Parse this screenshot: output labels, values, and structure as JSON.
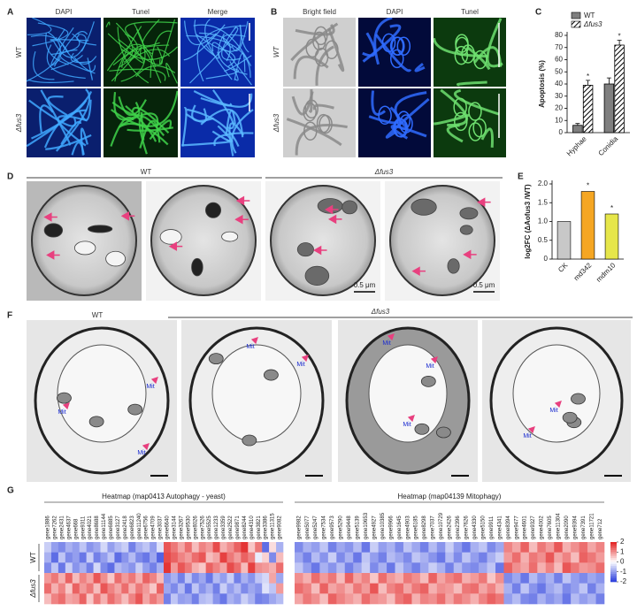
{
  "panel_labels": [
    "A",
    "B",
    "C",
    "D",
    "E",
    "F",
    "G"
  ],
  "panel_a": {
    "columns": [
      "DAPI",
      "Tunel",
      "Merge"
    ],
    "rows": [
      "WT",
      "Δfus3"
    ]
  },
  "panel_b": {
    "columns": [
      "Bright field",
      "DAPI",
      "Tunel"
    ],
    "rows": [
      "WT",
      "Δfus3"
    ]
  },
  "panel_d": {
    "groups": [
      "WT",
      "Δfus3"
    ],
    "scale_bars": [
      "0.5 μm",
      "0.5 μm"
    ]
  },
  "panel_f": {
    "groups": [
      "WT",
      "Δfus3"
    ],
    "annotations": [
      "Mit",
      "Mit",
      "Mit",
      "Mit",
      "Mit",
      "Mit",
      "Mit",
      "Mit",
      "Mit",
      "Mit"
    ]
  },
  "chart_data": [
    {
      "type": "bar",
      "y_label": "Apoptosis (%)",
      "categories": [
        "Hyphae",
        "Conidia"
      ],
      "series": [
        {
          "name": "WT",
          "color": "#7f7f7f",
          "values": [
            6,
            40
          ],
          "errors": [
            1.5,
            5
          ]
        },
        {
          "name": "Δfus3",
          "color": "#000000",
          "pattern": "hatch",
          "values": [
            39,
            72
          ],
          "errors": [
            4,
            4
          ],
          "significance": [
            "*",
            "*"
          ]
        }
      ],
      "ylim": [
        0,
        80
      ],
      "yticks": [
        0,
        10,
        20,
        30,
        40,
        50,
        60,
        70,
        80
      ],
      "legend": "top"
    },
    {
      "type": "bar",
      "y_label": "log2FC (ΔAofus3 /WT)",
      "categories": [
        "CK",
        "md342",
        "mdm10"
      ],
      "values": [
        1.0,
        1.8,
        1.2
      ],
      "colors": [
        "#c8c8c8",
        "#f5a623",
        "#e6e64a"
      ],
      "annotations": [
        {
          "category": "md342",
          "text": "*"
        },
        {
          "category": "mdm10",
          "text": "*"
        }
      ],
      "ylim": [
        0,
        2
      ],
      "yticks": [
        0,
        0.5,
        {
          "value": 1,
          "label": "1.0"
        },
        1.5,
        {
          "value": 2,
          "label": "2.0"
        }
      ]
    },
    {
      "type": "heatmap",
      "title": "Heatmap (map0413 Autophagy - yeast)",
      "row_groups": [
        "WT",
        "Δfus3"
      ],
      "x": [
        "gene1886",
        "gene7262",
        "gene2431",
        "gene4637",
        "gene668",
        "gene9311",
        "gene4021",
        "gene8688",
        "gene11144",
        "gene6885",
        "gene3127",
        "gene2418",
        "gene6823",
        "gene11240",
        "gene6756",
        "gene4709",
        "gene3037",
        "gene6640",
        "gene3144",
        "gene3267",
        "gene9530",
        "gene8026",
        "gene7526",
        "gene5525",
        "gene1233",
        "gene3359",
        "gene2522",
        "gene9871",
        "gene8244",
        "gene4310",
        "gene3821",
        "gene3386",
        "gene11315",
        "gene9082"
      ],
      "zlim": [
        -2,
        2
      ],
      "values": [
        [
          -0.5,
          -1,
          -1.2,
          -0.8,
          -1,
          -0.6,
          -1.1,
          -0.9,
          -0.4,
          -1,
          -0.7,
          -0.5,
          -1.3,
          -0.8,
          -0.6,
          -1,
          -0.3,
          1.5,
          1.2,
          0.8,
          1.3,
          0.6,
          1.1,
          0.9,
          1.6,
          0.7,
          1.0,
          1.4,
          1.8,
          0.5,
          1.2,
          -1.5,
          0.3,
          -0.8
        ],
        [
          -0.8,
          -1.5,
          -0.6,
          -1.2,
          -1,
          -1.4,
          -0.5,
          -1.3,
          -1,
          -0.6,
          -1.5,
          -1.1,
          -0.7,
          -1.2,
          -1.4,
          -0.9,
          -1.6,
          1.6,
          1.4,
          1.1,
          0.9,
          1.3,
          1.5,
          0.6,
          0.8,
          1.7,
          1.2,
          0.9,
          1.4,
          1.1,
          -0.2,
          0.4,
          -1.2,
          0.6
        ],
        [
          -1.2,
          -0.6,
          -1.4,
          -0.5,
          -1.1,
          -0.8,
          -1.3,
          -0.4,
          -1.2,
          -1.5,
          -0.7,
          -0.9,
          -1.1,
          -0.5,
          -1,
          -1.3,
          -0.8,
          1.8,
          0.9,
          1.5,
          1.2,
          0.7,
          0.5,
          1.4,
          1.1,
          0.8,
          1.6,
          1.3,
          0.6,
          1.7,
          1.0,
          0.9,
          0.7,
          1.3
        ],
        [
          0.9,
          1.2,
          0.7,
          1.4,
          0.6,
          1.1,
          0.8,
          1.5,
          1.0,
          0.5,
          1.3,
          0.9,
          1.2,
          0.7,
          1.4,
          1.1,
          0.6,
          -1.1,
          -0.8,
          -1.3,
          -0.6,
          -1.2,
          -0.9,
          -1.4,
          -0.7,
          -1.0,
          -0.5,
          -1.3,
          -0.8,
          -1.1,
          -0.6,
          -0.4,
          0.8,
          -0.9
        ],
        [
          1.3,
          0.7,
          1.1,
          0.5,
          1.4,
          0.9,
          1.2,
          0.6,
          1.5,
          1.1,
          0.8,
          1.3,
          0.7,
          1.2,
          0.9,
          0.5,
          1.4,
          -0.9,
          -1.2,
          -0.7,
          -1.4,
          -0.6,
          -1.1,
          -0.8,
          -1.3,
          -0.5,
          -1.0,
          -0.7,
          -1.2,
          -0.9,
          -1.1,
          -0.3,
          -0.6,
          0.9
        ],
        [
          0.6,
          1.1,
          1.3,
          0.8,
          0.9,
          1.4,
          0.5,
          1.2,
          0.7,
          1.3,
          1.0,
          0.6,
          1.1,
          1.5,
          0.8,
          1.2,
          0.9,
          -1.3,
          -0.6,
          -1.0,
          -0.9,
          -1.3,
          -0.7,
          -0.6,
          -1.1,
          -1.4,
          -0.8,
          -1.0,
          -0.5,
          -0.8,
          -1.3,
          -1.2,
          -0.9,
          -0.7
        ]
      ]
    },
    {
      "type": "heatmap",
      "title": "Heatmap (map04139 Mitophagy)",
      "x": [
        "gene9982",
        "gene5077",
        "gene5247",
        "gene7534",
        "gene9573",
        "gene5290",
        "gene9448",
        "gene5139",
        "gene10653",
        "gene4927",
        "gene10385",
        "gene9966",
        "gene1645",
        "gene4903",
        "gene6185",
        "gene8298",
        "gene7037",
        "gene10729",
        "gene2426",
        "gene2396",
        "gene7626",
        "gene4330",
        "gene5150",
        "gene9911",
        "gene4341",
        "gene8394",
        "gene9477",
        "gene4601",
        "gene9327",
        "gene4002",
        "gene7605",
        "gene11304",
        "gene2090",
        "gene9394",
        "gene7391",
        "gene11721",
        "gene712"
      ],
      "zlim": [
        -2,
        2
      ],
      "colorbar_ticks": [
        2,
        1,
        0,
        -1,
        -2
      ],
      "values": [
        [
          -1.2,
          -0.8,
          -1.0,
          -0.6,
          -1.3,
          -0.9,
          -1.1,
          -0.7,
          -1.4,
          -0.5,
          -1.0,
          -0.8,
          -1.2,
          -0.6,
          -0.9,
          -1.3,
          -0.7,
          -1.1,
          -0.5,
          -1.0,
          -1.4,
          -0.8,
          -0.6,
          -1.2,
          -0.9,
          1.1,
          0.8,
          1.4,
          0.6,
          1.2,
          0.9,
          1.5,
          0.7,
          1.0,
          1.3,
          0.8,
          1.1
        ],
        [
          -0.9,
          -1.3,
          -0.7,
          -1.1,
          -0.5,
          -1.2,
          -0.8,
          -1.4,
          -0.6,
          -1.0,
          -1.3,
          -0.7,
          -0.9,
          -1.2,
          -0.6,
          -0.8,
          -1.1,
          -1.4,
          -0.7,
          -1.2,
          -0.6,
          -1.0,
          -1.3,
          -0.8,
          -0.5,
          0.9,
          1.3,
          0.7,
          1.2,
          1.0,
          1.5,
          0.8,
          1.1,
          0.6,
          1.4,
          1.2,
          0.9
        ],
        [
          -0.6,
          -1.0,
          -1.4,
          -0.8,
          -1.1,
          -0.7,
          -1.3,
          -0.9,
          -0.5,
          -1.2,
          -0.8,
          -1.4,
          -0.6,
          -1.0,
          -1.3,
          -0.9,
          -0.5,
          -0.8,
          -1.3,
          -0.7,
          -1.1,
          -1.2,
          -0.9,
          -0.6,
          -1.4,
          1.4,
          1.0,
          0.8,
          1.3,
          0.7,
          1.1,
          0.6,
          1.5,
          1.2,
          0.9,
          1.0,
          1.3
        ],
        [
          1.0,
          0.7,
          1.3,
          0.9,
          1.2,
          0.6,
          1.4,
          0.8,
          1.1,
          0.5,
          1.3,
          0.9,
          0.7,
          1.2,
          1.0,
          0.6,
          1.4,
          0.8,
          1.1,
          1.3,
          0.7,
          0.9,
          1.2,
          0.5,
          1.0,
          -1.2,
          -0.9,
          -1.4,
          -0.7,
          -1.1,
          -0.8,
          -1.3,
          -0.6,
          -1.0,
          -1.2,
          -0.9,
          -1.1
        ],
        [
          1.3,
          1.1,
          0.6,
          1.4,
          0.8,
          1.0,
          0.7,
          1.2,
          0.9,
          1.5,
          0.6,
          1.1,
          1.3,
          0.8,
          1.2,
          1.4,
          0.7,
          1.0,
          0.9,
          0.6,
          1.2,
          1.3,
          0.8,
          1.1,
          0.7,
          -0.8,
          -1.3,
          -0.6,
          -1.1,
          -1.4,
          -0.9,
          -0.7,
          -1.2,
          -1.0,
          -0.6,
          -1.3,
          -0.8
        ],
        [
          0.8,
          1.2,
          1.0,
          0.6,
          1.4,
          1.1,
          0.9,
          0.7,
          1.3,
          1.0,
          0.9,
          0.6,
          1.2,
          1.4,
          0.7,
          1.1,
          1.0,
          1.3,
          0.8,
          1.2,
          1.0,
          0.7,
          1.1,
          1.4,
          1.2,
          -1.0,
          -0.7,
          -1.2,
          -1.3,
          -0.8,
          -1.1,
          -0.9,
          -1.4,
          -0.7,
          -1.0,
          -0.8,
          -1.3
        ]
      ]
    }
  ]
}
